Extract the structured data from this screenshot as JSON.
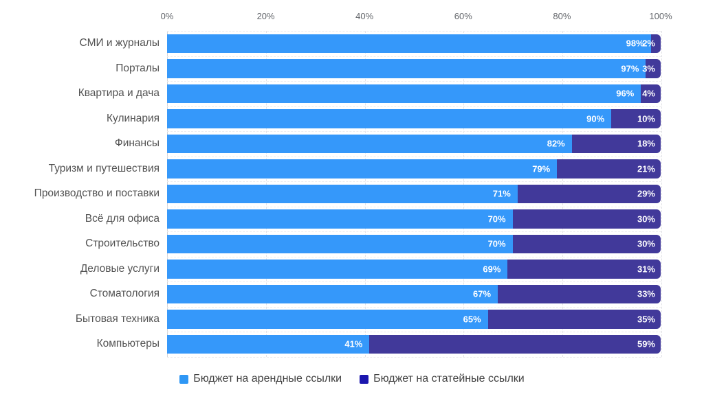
{
  "chart_data": {
    "type": "bar",
    "orientation": "horizontal",
    "stacked": true,
    "title": "",
    "categories": [
      "СМИ и журналы",
      "Порталы",
      "Квартира и дача",
      "Кулинария",
      "Финансы",
      "Туризм и путешествия",
      "Производство и поставки",
      "Всё для офиса",
      "Строительство",
      "Деловые услуги",
      "Стоматология",
      "Бытовая техника",
      "Компьютеры"
    ],
    "series": [
      {
        "name": "Бюджет на арендные ссылки",
        "color": "#3598fa",
        "values": [
          98,
          97,
          96,
          90,
          82,
          79,
          71,
          70,
          70,
          69,
          67,
          65,
          41
        ]
      },
      {
        "name": "Бюджет на статейные ссылки",
        "color": "#41399a",
        "values": [
          2,
          3,
          4,
          10,
          18,
          21,
          29,
          30,
          30,
          31,
          33,
          35,
          59
        ]
      }
    ],
    "value_label_suffix": "%",
    "x_ticks": [
      "0%",
      "20%",
      "40%",
      "60%",
      "80%",
      "100%"
    ],
    "xlim": [
      0,
      100
    ],
    "grid": true,
    "legend_position": "bottom",
    "legend_marker_colors": [
      "#2f97f5",
      "#1c17ae"
    ],
    "colors": {
      "tick_text": "#63666b",
      "category_text": "#525252",
      "value_text": "#ffffff",
      "legend_text": "#414141"
    }
  }
}
